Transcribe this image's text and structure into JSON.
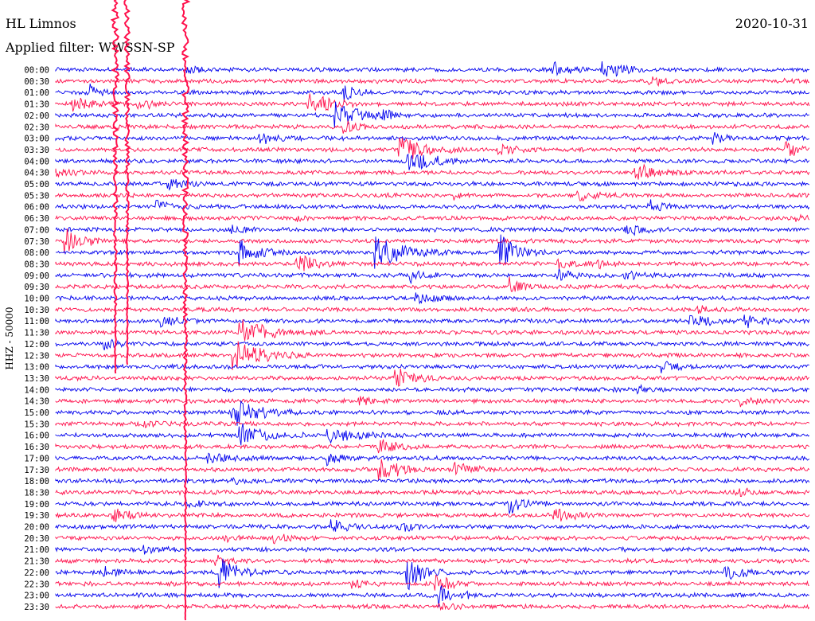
{
  "header": {
    "station": "HL Limnos",
    "date": "2020-10-31",
    "filter": "Applied filter: WWSSN-SP"
  },
  "y_axis_label": "HHZ - 50000",
  "colors": {
    "trace_a": "#0000ee",
    "trace_b": "#ff0f4b"
  },
  "chart_data": {
    "type": "line",
    "title": "HL Limnos",
    "subtitle": "Applied filter: WWSSN-SP",
    "ylabel": "HHZ - 50000",
    "row_labels": [
      "00:00",
      "00:30",
      "01:00",
      "01:30",
      "02:00",
      "02:30",
      "03:00",
      "03:30",
      "04:00",
      "04:30",
      "05:00",
      "05:30",
      "06:00",
      "06:30",
      "07:00",
      "07:30",
      "08:00",
      "08:30",
      "09:00",
      "09:30",
      "10:00",
      "10:30",
      "11:00",
      "11:30",
      "12:00",
      "12:30",
      "13:00",
      "13:30",
      "14:00",
      "14:30",
      "15:00",
      "15:30",
      "16:00",
      "16:30",
      "17:00",
      "17:30",
      "18:00",
      "18:30",
      "19:00",
      "19:30",
      "20:00",
      "20:30",
      "21:00",
      "21:30",
      "22:00",
      "22:30",
      "23:00",
      "23:30"
    ],
    "series": [
      {
        "color": "#0000ee",
        "rows": "even"
      },
      {
        "color": "#ff0f4b",
        "rows": "odd"
      }
    ]
  }
}
